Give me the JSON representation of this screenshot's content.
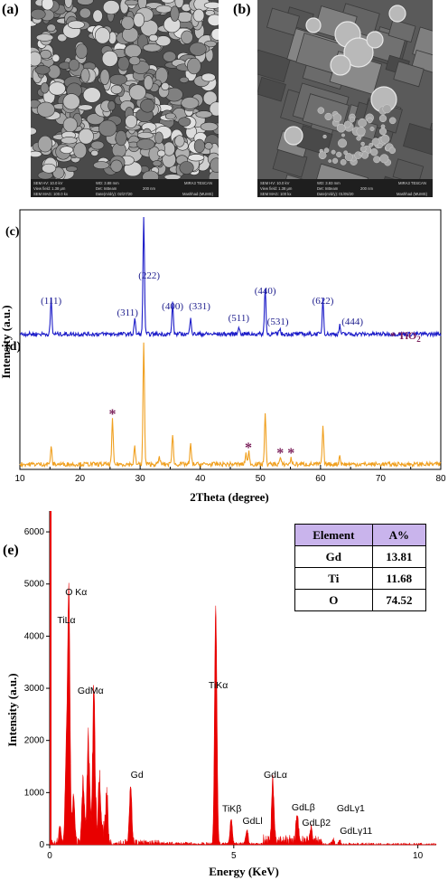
{
  "panels": {
    "a": "(a)",
    "b": "(b)",
    "c": "(c)",
    "d": "(d)",
    "e": "(e)"
  },
  "sem_a": {
    "hv": "SEM HV: 10.0 kV",
    "wd": "WD: 3.88 mm",
    "brand": "MIRA3 TESCAN",
    "view": "View field: 1.38 μm",
    "det": "Det: InBeam",
    "scale": "200 nm",
    "mag": "SEM MAG: 100.0 kx",
    "date": "Date(m/d/y): 02/27/20",
    "site": "Mashhad (MUMS)"
  },
  "sem_b": {
    "hv": "SEM HV: 10.0 kV",
    "wd": "WD: 3.93 mm",
    "brand": "MIRA3 TESCAN",
    "view": "View field: 1.38 μm",
    "det": "Det: InBeam",
    "scale": "200 nm",
    "mag": "SEM MAG: 100 kx",
    "date": "Date(m/d/y): 01/05/20",
    "site": "Mashhad (MUMS)"
  },
  "chart_data": [
    {
      "type": "line",
      "panel": "c-d",
      "xlabel": "2Theta (degree)",
      "ylabel": "Intensity (a.u.)",
      "xlim": [
        10,
        80
      ],
      "xticks": [
        "10",
        "20",
        "30",
        "40",
        "50",
        "60",
        "70",
        "80"
      ],
      "legend_note": "* TiO",
      "legend_sub": "2",
      "series": [
        {
          "color": "#1c1cc8",
          "peaks": [
            [
              15.2,
              0.3
            ],
            [
              29.1,
              0.13
            ],
            [
              30.6,
              1.0
            ],
            [
              35.4,
              0.26
            ],
            [
              38.4,
              0.15
            ],
            [
              46.4,
              0.07
            ],
            [
              50.8,
              0.4
            ],
            [
              53.2,
              0.05
            ],
            [
              60.4,
              0.3
            ],
            [
              63.2,
              0.07
            ]
          ],
          "hkl_labels": [
            {
              "text": "(111)",
              "x": 15.2
            },
            {
              "text": "(311)",
              "x": 29.1
            },
            {
              "text": "(222)",
              "x": 30.6
            },
            {
              "text": "(400)",
              "x": 35.4
            },
            {
              "text": "(331)",
              "x": 38.4
            },
            {
              "text": "(511)",
              "x": 46.4
            },
            {
              "text": "(440)",
              "x": 50.8
            },
            {
              "text": "(531)",
              "x": 53.2
            },
            {
              "text": "(622)",
              "x": 60.4
            },
            {
              "text": "(444)",
              "x": 63.2
            }
          ]
        },
        {
          "color": "#f0a020",
          "peaks": [
            [
              15.2,
              0.14
            ],
            [
              25.4,
              0.36
            ],
            [
              29.1,
              0.14
            ],
            [
              30.6,
              1.0
            ],
            [
              33.2,
              0.06
            ],
            [
              35.4,
              0.25
            ],
            [
              38.4,
              0.16
            ],
            [
              47.6,
              0.09
            ],
            [
              48.1,
              0.1
            ],
            [
              50.8,
              0.42
            ],
            [
              53.3,
              0.05
            ],
            [
              55.1,
              0.05
            ],
            [
              60.4,
              0.3
            ],
            [
              63.2,
              0.07
            ]
          ],
          "tio2_markers": [
            {
              "text": "*",
              "x": 25.4
            },
            {
              "text": "*",
              "x": 48.0
            },
            {
              "text": "*",
              "x": 53.3
            },
            {
              "text": "*",
              "x": 55.1
            }
          ]
        }
      ]
    },
    {
      "type": "area",
      "panel": "e",
      "xlabel": "Energy (KeV)",
      "ylabel": "Intensity (a.u.)",
      "xlim": [
        0,
        10.5
      ],
      "ylim": [
        0,
        6400
      ],
      "xticks": [
        "0",
        "5",
        "10"
      ],
      "yticks": [
        "0",
        "1000",
        "2000",
        "3000",
        "4000",
        "5000",
        "6000"
      ],
      "color": "#e80000",
      "spectrum_peaks": [
        [
          0.28,
          300
        ],
        [
          0.52,
          4780
        ],
        [
          0.45,
          1600
        ],
        [
          0.65,
          900
        ],
        [
          0.9,
          1000
        ],
        [
          1.05,
          1700
        ],
        [
          1.2,
          2750
        ],
        [
          1.35,
          1050
        ],
        [
          1.55,
          700
        ],
        [
          2.2,
          1150
        ],
        [
          4.51,
          4550
        ],
        [
          4.93,
          500
        ],
        [
          5.36,
          280
        ],
        [
          6.06,
          1140
        ],
        [
          6.72,
          520
        ],
        [
          7.1,
          220
        ],
        [
          7.7,
          110
        ],
        [
          7.88,
          80
        ]
      ],
      "peak_labels": [
        {
          "text": "O Kα",
          "x": 0.52,
          "y": 4790
        },
        {
          "text": "TiLα",
          "x": 0.45,
          "y": 4250
        },
        {
          "text": "GdMα",
          "x": 1.2,
          "y": 2900
        },
        {
          "text": "Gd",
          "x": 2.2,
          "y": 1280
        },
        {
          "text": "TiKα",
          "x": 4.51,
          "y": 3000
        },
        {
          "text": "TiKβ",
          "x": 4.93,
          "y": 630
        },
        {
          "text": "GdLl",
          "x": 5.36,
          "y": 400
        },
        {
          "text": "GdLα",
          "x": 6.06,
          "y": 1280
        },
        {
          "text": "GdLβ",
          "x": 6.72,
          "y": 660
        },
        {
          "text": "GdLβ2",
          "x": 7.1,
          "y": 360
        },
        {
          "text": "GdLγ1",
          "x": 7.7,
          "y": 640
        },
        {
          "text": "GdLγ11",
          "x": 7.88,
          "y": 210
        }
      ],
      "table": {
        "headers": [
          "Element",
          "A%"
        ],
        "rows": [
          [
            "Gd",
            "13.81"
          ],
          [
            "Ti",
            "11.68"
          ],
          [
            "O",
            "74.52"
          ]
        ]
      }
    }
  ]
}
